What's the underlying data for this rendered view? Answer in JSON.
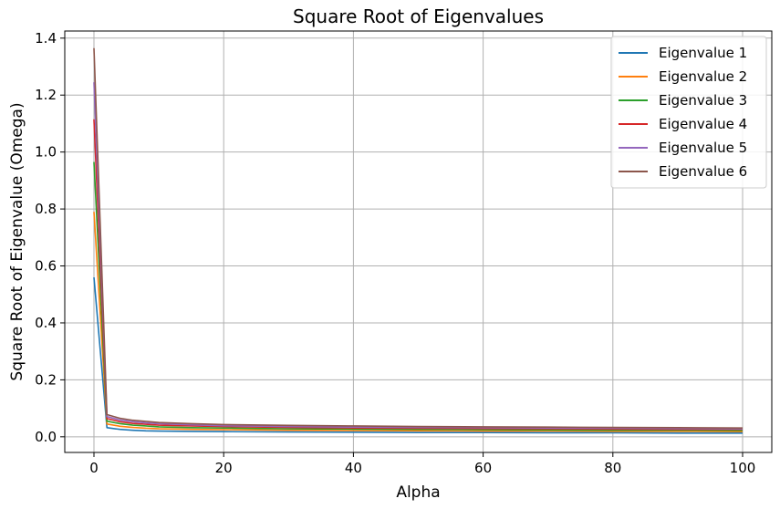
{
  "chart_data": {
    "type": "line",
    "title": "Square Root of Eigenvalues",
    "xlabel": "Alpha",
    "ylabel": "Square Root of Eigenvalue (Omega)",
    "xlim": [
      -4.5,
      104.5
    ],
    "ylim": [
      -0.055,
      1.425
    ],
    "xticks": [
      0,
      20,
      40,
      60,
      80,
      100
    ],
    "xtick_labels": [
      "0",
      "20",
      "40",
      "60",
      "80",
      "100"
    ],
    "yticks": [
      0.0,
      0.2,
      0.4,
      0.6,
      0.8,
      1.0,
      1.2,
      1.4
    ],
    "ytick_labels": [
      "0.0",
      "0.2",
      "0.4",
      "0.6",
      "0.8",
      "1.0",
      "1.2",
      "1.4"
    ],
    "grid": true,
    "legend_position": "top-right",
    "x": [
      0,
      2,
      4,
      6,
      8,
      10,
      15,
      20,
      30,
      40,
      50,
      60,
      70,
      80,
      90,
      100
    ],
    "series": [
      {
        "name": "Eigenvalue 1",
        "color": "#1f77b4",
        "values": [
          0.56,
          0.032,
          0.026,
          0.023,
          0.021,
          0.02,
          0.019,
          0.018,
          0.017,
          0.016,
          0.015,
          0.015,
          0.014,
          0.014,
          0.013,
          0.013
        ]
      },
      {
        "name": "Eigenvalue 2",
        "color": "#ff7f0e",
        "values": [
          0.79,
          0.045,
          0.037,
          0.033,
          0.03,
          0.028,
          0.026,
          0.025,
          0.023,
          0.022,
          0.021,
          0.02,
          0.02,
          0.019,
          0.019,
          0.018
        ]
      },
      {
        "name": "Eigenvalue 3",
        "color": "#2ca02c",
        "values": [
          0.965,
          0.055,
          0.046,
          0.041,
          0.038,
          0.035,
          0.032,
          0.031,
          0.028,
          0.027,
          0.026,
          0.025,
          0.024,
          0.023,
          0.023,
          0.022
        ]
      },
      {
        "name": "Eigenvalue 4",
        "color": "#d62728",
        "values": [
          1.115,
          0.064,
          0.053,
          0.047,
          0.044,
          0.041,
          0.038,
          0.036,
          0.033,
          0.031,
          0.03,
          0.029,
          0.028,
          0.027,
          0.026,
          0.026
        ]
      },
      {
        "name": "Eigenvalue 5",
        "color": "#9467bd",
        "values": [
          1.245,
          0.071,
          0.059,
          0.053,
          0.049,
          0.046,
          0.042,
          0.039,
          0.036,
          0.034,
          0.033,
          0.032,
          0.031,
          0.03,
          0.029,
          0.028
        ]
      },
      {
        "name": "Eigenvalue 6",
        "color": "#8c564b",
        "values": [
          1.365,
          0.078,
          0.065,
          0.058,
          0.054,
          0.05,
          0.046,
          0.043,
          0.04,
          0.038,
          0.036,
          0.035,
          0.034,
          0.033,
          0.032,
          0.031
        ]
      }
    ]
  }
}
